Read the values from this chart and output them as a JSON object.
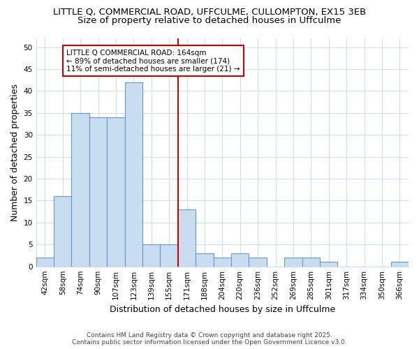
{
  "title_line1": "LITTLE Q, COMMERCIAL ROAD, UFFCULME, CULLOMPTON, EX15 3EB",
  "title_line2": "Size of property relative to detached houses in Uffculme",
  "xlabel": "Distribution of detached houses by size in Uffculme",
  "ylabel": "Number of detached properties",
  "categories": [
    "42sqm",
    "58sqm",
    "74sqm",
    "90sqm",
    "107sqm",
    "123sqm",
    "139sqm",
    "155sqm",
    "171sqm",
    "188sqm",
    "204sqm",
    "220sqm",
    "236sqm",
    "252sqm",
    "269sqm",
    "285sqm",
    "301sqm",
    "317sqm",
    "334sqm",
    "350sqm",
    "366sqm"
  ],
  "values": [
    2,
    16,
    35,
    34,
    34,
    42,
    5,
    5,
    13,
    3,
    2,
    3,
    2,
    0,
    2,
    2,
    1,
    0,
    0,
    0,
    1
  ],
  "bar_color": "#c8ddf0",
  "bar_edge_color": "#5b9bd5",
  "property_line_x": 8.0,
  "annotation_text": "LITTLE Q COMMERCIAL ROAD: 164sqm\n← 89% of detached houses are smaller (174)\n11% of semi-detached houses are larger (21) →",
  "annotation_box_color": "#ffffff",
  "annotation_box_edge_color": "#cc0000",
  "vline_color": "#cc0000",
  "ylim": [
    0,
    52
  ],
  "yticks": [
    0,
    5,
    10,
    15,
    20,
    25,
    30,
    35,
    40,
    45,
    50
  ],
  "footer_text": "Contains HM Land Registry data © Crown copyright and database right 2025.\nContains public sector information licensed under the Open Government Licence v3.0.",
  "bg_color": "#ffffff",
  "plot_bg_color": "#ffffff",
  "grid_color": "#d0dce8",
  "title_fontsize": 9.5,
  "subtitle_fontsize": 9.5,
  "tick_fontsize": 7.5,
  "label_fontsize": 9
}
